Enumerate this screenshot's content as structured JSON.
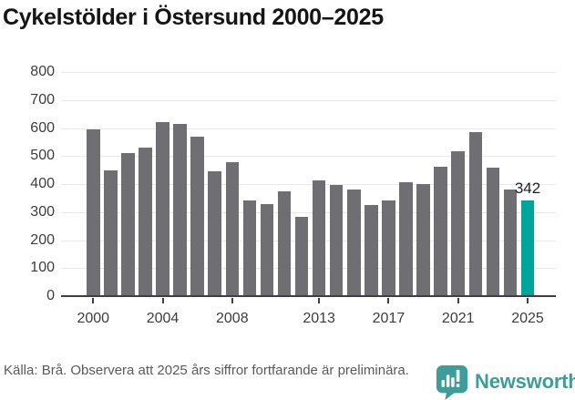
{
  "title": "Cykelstölder i Östersund 2000–2025",
  "chart_data": {
    "type": "bar",
    "categories": [
      2000,
      2001,
      2002,
      2003,
      2004,
      2005,
      2006,
      2007,
      2008,
      2009,
      2010,
      2011,
      2012,
      2013,
      2014,
      2015,
      2016,
      2017,
      2018,
      2019,
      2020,
      2021,
      2022,
      2023,
      2024,
      2025
    ],
    "values": [
      595,
      448,
      512,
      530,
      620,
      615,
      570,
      446,
      478,
      340,
      328,
      374,
      283,
      413,
      396,
      380,
      326,
      340,
      406,
      400,
      462,
      516,
      586,
      458,
      380,
      342
    ],
    "title": "Cykelstölder i Östersund 2000–2025",
    "xlabel": "",
    "ylabel": "",
    "ylim": [
      0,
      800
    ],
    "y_ticks": [
      0,
      100,
      200,
      300,
      400,
      500,
      600,
      700,
      800
    ],
    "x_tick_labels": [
      "2000",
      "2004",
      "2008",
      "2013",
      "2017",
      "2021",
      "2025"
    ],
    "grid": true,
    "legend": "none",
    "bar_color": "#6e6e73",
    "highlight": {
      "year": 2025,
      "value": 342,
      "label": "342",
      "color": "#00a49b",
      "note": "preliminary"
    }
  },
  "footer": {
    "source_note": "Källa: Brå. Observera att 2025 års siffror fortfarande är preliminära."
  },
  "branding": {
    "logo_text": "Newsworthy",
    "logo_color": "#3e9c99"
  }
}
